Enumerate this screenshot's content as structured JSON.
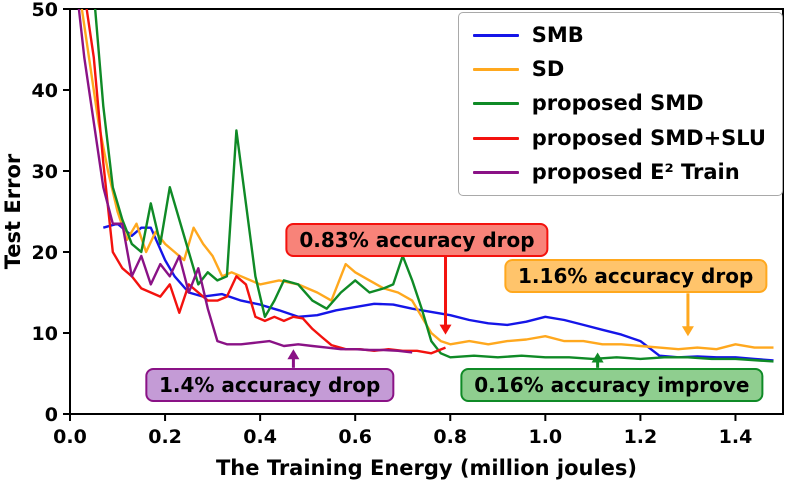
{
  "figure": {
    "background": "#ffffff",
    "text_color": "#000000"
  },
  "chart_data": {
    "type": "line",
    "title": "",
    "xlabel": "The Training Energy (million joules)",
    "ylabel": "Test Error",
    "xlim": [
      0,
      1.5
    ],
    "ylim": [
      0,
      50
    ],
    "x_ticks": [
      0.0,
      0.2,
      0.4,
      0.6,
      0.8,
      1.0,
      1.2,
      1.4
    ],
    "y_ticks": [
      0,
      10,
      20,
      30,
      40,
      50
    ],
    "grid": false,
    "legend_position": "upper right",
    "series": [
      {
        "name": "SMB",
        "color": "#1515e8",
        "points": [
          [
            0.07,
            23
          ],
          [
            0.1,
            23.5
          ],
          [
            0.13,
            22
          ],
          [
            0.15,
            23
          ],
          [
            0.17,
            23
          ],
          [
            0.2,
            19
          ],
          [
            0.22,
            17
          ],
          [
            0.25,
            15
          ],
          [
            0.28,
            14.5
          ],
          [
            0.32,
            14.8
          ],
          [
            0.36,
            14
          ],
          [
            0.4,
            13.5
          ],
          [
            0.44,
            12.8
          ],
          [
            0.48,
            12
          ],
          [
            0.52,
            12.2
          ],
          [
            0.56,
            12.8
          ],
          [
            0.6,
            13.2
          ],
          [
            0.64,
            13.6
          ],
          [
            0.68,
            13.5
          ],
          [
            0.72,
            13
          ],
          [
            0.76,
            12.6
          ],
          [
            0.8,
            12.2
          ],
          [
            0.84,
            11.6
          ],
          [
            0.88,
            11.2
          ],
          [
            0.92,
            11
          ],
          [
            0.96,
            11.4
          ],
          [
            1.0,
            12
          ],
          [
            1.04,
            11.6
          ],
          [
            1.08,
            11
          ],
          [
            1.12,
            10.4
          ],
          [
            1.16,
            9.8
          ],
          [
            1.2,
            9
          ],
          [
            1.24,
            7.2
          ],
          [
            1.28,
            7
          ],
          [
            1.32,
            7.1
          ],
          [
            1.36,
            7
          ],
          [
            1.4,
            7
          ],
          [
            1.44,
            6.8
          ],
          [
            1.48,
            6.6
          ]
        ]
      },
      {
        "name": "SD",
        "color": "#ffa81e",
        "points": [
          [
            0.02,
            52
          ],
          [
            0.04,
            44
          ],
          [
            0.06,
            36
          ],
          [
            0.08,
            30
          ],
          [
            0.1,
            25
          ],
          [
            0.12,
            21.5
          ],
          [
            0.14,
            23.5
          ],
          [
            0.16,
            20
          ],
          [
            0.18,
            22.5
          ],
          [
            0.2,
            21
          ],
          [
            0.22,
            20
          ],
          [
            0.24,
            19
          ],
          [
            0.26,
            23
          ],
          [
            0.28,
            21
          ],
          [
            0.3,
            19.5
          ],
          [
            0.32,
            17
          ],
          [
            0.34,
            17.5
          ],
          [
            0.36,
            17
          ],
          [
            0.38,
            16.5
          ],
          [
            0.4,
            16
          ],
          [
            0.44,
            16.5
          ],
          [
            0.48,
            16
          ],
          [
            0.52,
            15
          ],
          [
            0.55,
            14
          ],
          [
            0.58,
            18.5
          ],
          [
            0.6,
            17.5
          ],
          [
            0.63,
            16.5
          ],
          [
            0.66,
            15.5
          ],
          [
            0.69,
            15
          ],
          [
            0.72,
            14
          ],
          [
            0.74,
            12
          ],
          [
            0.76,
            10
          ],
          [
            0.78,
            9
          ],
          [
            0.8,
            8.6
          ],
          [
            0.84,
            9
          ],
          [
            0.88,
            8.6
          ],
          [
            0.92,
            9
          ],
          [
            0.96,
            9.2
          ],
          [
            1.0,
            9.6
          ],
          [
            1.04,
            9
          ],
          [
            1.08,
            9
          ],
          [
            1.12,
            8.6
          ],
          [
            1.16,
            8.6
          ],
          [
            1.2,
            8.4
          ],
          [
            1.24,
            8.2
          ],
          [
            1.28,
            8
          ],
          [
            1.32,
            8.2
          ],
          [
            1.36,
            8
          ],
          [
            1.4,
            8.6
          ],
          [
            1.44,
            8.2
          ],
          [
            1.48,
            8.2
          ]
        ]
      },
      {
        "name": "proposed SMD",
        "color": "#0f8a26",
        "points": [
          [
            0.05,
            52
          ],
          [
            0.07,
            38
          ],
          [
            0.09,
            28
          ],
          [
            0.11,
            24
          ],
          [
            0.13,
            21
          ],
          [
            0.15,
            20
          ],
          [
            0.17,
            26
          ],
          [
            0.19,
            21
          ],
          [
            0.21,
            28
          ],
          [
            0.23,
            24
          ],
          [
            0.25,
            20
          ],
          [
            0.27,
            16
          ],
          [
            0.29,
            17.5
          ],
          [
            0.31,
            16.5
          ],
          [
            0.33,
            17
          ],
          [
            0.35,
            35
          ],
          [
            0.37,
            26
          ],
          [
            0.39,
            17
          ],
          [
            0.41,
            12
          ],
          [
            0.43,
            14
          ],
          [
            0.45,
            16.5
          ],
          [
            0.48,
            16
          ],
          [
            0.51,
            14
          ],
          [
            0.54,
            13
          ],
          [
            0.57,
            15
          ],
          [
            0.6,
            16.5
          ],
          [
            0.63,
            15
          ],
          [
            0.66,
            15.5
          ],
          [
            0.68,
            16
          ],
          [
            0.7,
            19.5
          ],
          [
            0.72,
            16.5
          ],
          [
            0.74,
            13
          ],
          [
            0.76,
            9
          ],
          [
            0.78,
            7.5
          ],
          [
            0.8,
            7
          ],
          [
            0.85,
            7.2
          ],
          [
            0.9,
            7
          ],
          [
            0.95,
            7.2
          ],
          [
            1.0,
            7
          ],
          [
            1.05,
            7
          ],
          [
            1.1,
            6.8
          ],
          [
            1.15,
            7
          ],
          [
            1.2,
            6.8
          ],
          [
            1.25,
            7
          ],
          [
            1.3,
            7
          ],
          [
            1.35,
            6.8
          ],
          [
            1.4,
            6.8
          ],
          [
            1.45,
            6.6
          ],
          [
            1.48,
            6.5
          ]
        ]
      },
      {
        "name": "proposed SMD+SLU",
        "color": "#f3120e",
        "points": [
          [
            0.03,
            52
          ],
          [
            0.05,
            44
          ],
          [
            0.07,
            31
          ],
          [
            0.09,
            20
          ],
          [
            0.11,
            18
          ],
          [
            0.13,
            17
          ],
          [
            0.15,
            15.5
          ],
          [
            0.17,
            15
          ],
          [
            0.19,
            14.5
          ],
          [
            0.21,
            16
          ],
          [
            0.23,
            12.5
          ],
          [
            0.25,
            16
          ],
          [
            0.27,
            15
          ],
          [
            0.29,
            14
          ],
          [
            0.31,
            14
          ],
          [
            0.33,
            14.5
          ],
          [
            0.35,
            17
          ],
          [
            0.37,
            16
          ],
          [
            0.39,
            12
          ],
          [
            0.41,
            11.5
          ],
          [
            0.43,
            12
          ],
          [
            0.45,
            11.5
          ],
          [
            0.47,
            12
          ],
          [
            0.49,
            11.8
          ],
          [
            0.51,
            10.5
          ],
          [
            0.53,
            9.5
          ],
          [
            0.55,
            8.5
          ],
          [
            0.58,
            8
          ],
          [
            0.61,
            8
          ],
          [
            0.64,
            7.8
          ],
          [
            0.67,
            8
          ],
          [
            0.7,
            7.8
          ],
          [
            0.73,
            7.8
          ],
          [
            0.76,
            7.5
          ],
          [
            0.79,
            8.2
          ]
        ]
      },
      {
        "name": "proposed E² Train",
        "color": "#8a1286",
        "points": [
          [
            0.015,
            52
          ],
          [
            0.03,
            44
          ],
          [
            0.05,
            36
          ],
          [
            0.07,
            28
          ],
          [
            0.09,
            23.5
          ],
          [
            0.11,
            23.5
          ],
          [
            0.13,
            17
          ],
          [
            0.15,
            19.5
          ],
          [
            0.17,
            16
          ],
          [
            0.19,
            18.5
          ],
          [
            0.21,
            17
          ],
          [
            0.23,
            19.5
          ],
          [
            0.25,
            15
          ],
          [
            0.27,
            18
          ],
          [
            0.29,
            13
          ],
          [
            0.31,
            9
          ],
          [
            0.33,
            8.6
          ],
          [
            0.36,
            8.6
          ],
          [
            0.39,
            8.8
          ],
          [
            0.42,
            9
          ],
          [
            0.45,
            8.4
          ],
          [
            0.48,
            8.6
          ],
          [
            0.51,
            8.4
          ],
          [
            0.54,
            8.2
          ],
          [
            0.57,
            8
          ],
          [
            0.6,
            8
          ],
          [
            0.63,
            7.9
          ],
          [
            0.66,
            7.9
          ],
          [
            0.69,
            7.8
          ],
          [
            0.72,
            7.6
          ]
        ]
      }
    ],
    "annotations": [
      {
        "label": "0.83% accuracy drop",
        "fill": "#f88379",
        "border": "#f3120e",
        "box_center": [
          0.73,
          21.5
        ],
        "target": [
          0.79,
          9.8
        ],
        "dir": "down"
      },
      {
        "label": "1.16% accuracy drop",
        "fill": "#ffc46b",
        "border": "#ffa81e",
        "box_center": [
          1.19,
          17
        ],
        "target": [
          1.3,
          9.6
        ],
        "dir": "down"
      },
      {
        "label": "1.4% accuracy drop",
        "fill": "#c49bd6",
        "border": "#8a1286",
        "box_center": [
          0.42,
          3.6
        ],
        "target": [
          0.47,
          8.0
        ],
        "dir": "up"
      },
      {
        "label": "0.16% accuracy improve",
        "fill": "#8fce8f",
        "border": "#0f8a26",
        "box_center": [
          1.14,
          3.6
        ],
        "target": [
          1.11,
          7.6
        ],
        "dir": "up"
      }
    ]
  }
}
